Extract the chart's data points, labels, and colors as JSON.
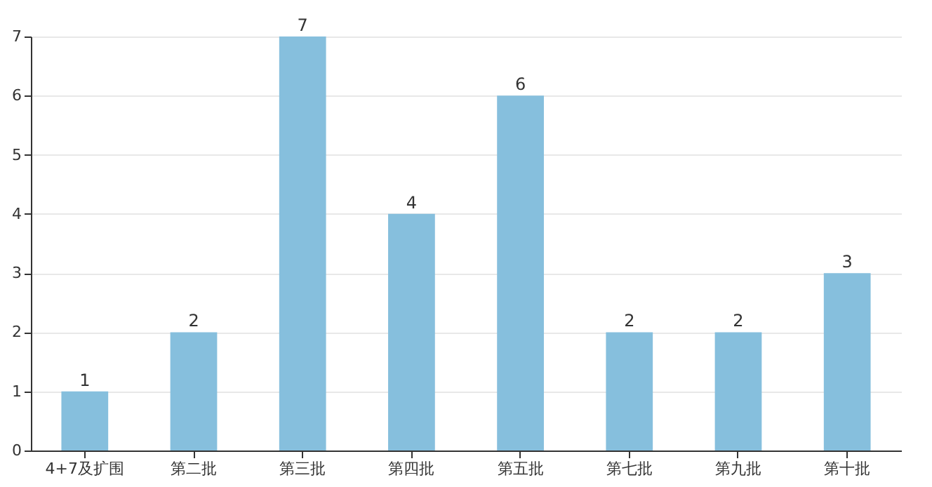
{
  "chart_data": {
    "type": "bar",
    "categories": [
      "4+7及扩围",
      "第二批",
      "第三批",
      "第四批",
      "第五批",
      "第七批",
      "第九批",
      "第十批"
    ],
    "values": [
      1,
      2,
      7,
      4,
      6,
      2,
      2,
      3
    ],
    "color": "#86bfdd",
    "ylim": [
      0,
      7
    ],
    "yticks": [
      0,
      1,
      2,
      3,
      4,
      5,
      6,
      7
    ],
    "grid": "y",
    "data_labels": true
  }
}
